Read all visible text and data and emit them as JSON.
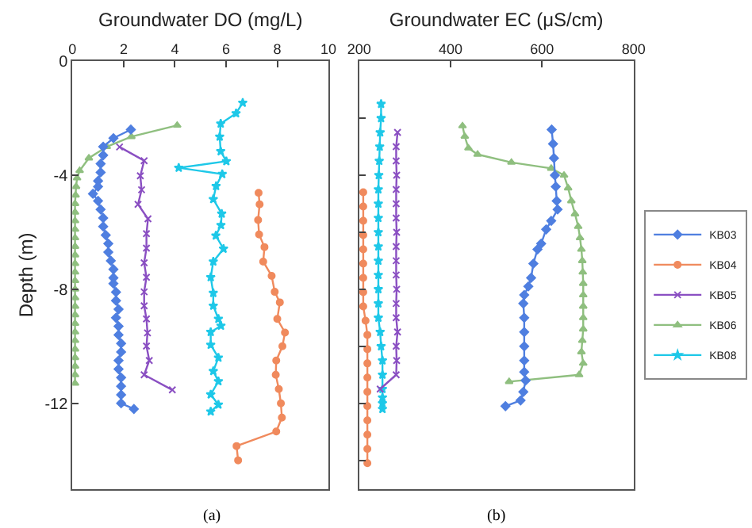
{
  "chart_data": [
    {
      "type": "line",
      "xlabel": "Groundwater DO (mg/L)",
      "ylabel": "Depth (m)",
      "xlim": [
        0,
        10
      ],
      "xticks": [
        0,
        2,
        4,
        6,
        8,
        10
      ],
      "ylim": [
        -15,
        0
      ],
      "yticks": [
        0,
        -4,
        -8,
        -12
      ],
      "legend": "right",
      "annotations": [
        "(a)"
      ],
      "series": [
        {
          "name": "KB03",
          "color": "#4f7fe0",
          "marker": "diamond",
          "x": [
            2.28,
            1.6,
            1.2,
            1.2,
            1.1,
            1.1,
            1.0,
            1.0,
            0.8,
            1.0,
            1.1,
            1.2,
            1.2,
            1.3,
            1.4,
            1.4,
            1.5,
            1.6,
            1.6,
            1.6,
            1.7,
            1.7,
            1.8,
            1.7,
            1.8,
            1.8,
            1.9,
            1.9,
            1.8,
            1.8,
            1.9,
            1.9,
            1.9,
            1.9,
            2.4
          ],
          "values": [
            -2.4,
            -2.7,
            -3.0,
            -3.3,
            -3.6,
            -3.9,
            -4.2,
            -4.4,
            -4.65,
            -4.9,
            -5.2,
            -5.5,
            -5.8,
            -6.1,
            -6.4,
            -6.7,
            -7.0,
            -7.3,
            -7.6,
            -7.8,
            -8.1,
            -8.4,
            -8.7,
            -9.0,
            -9.3,
            -9.6,
            -9.9,
            -10.2,
            -10.5,
            -10.8,
            -11.1,
            -11.4,
            -11.7,
            -12.0,
            -12.2
          ]
        },
        {
          "name": "KB04",
          "color": "#f08a5d",
          "marker": "circle",
          "x": [
            7.27,
            7.31,
            7.25,
            7.29,
            7.5,
            7.45,
            7.78,
            7.9,
            8.1,
            8.0,
            8.3,
            8.2,
            7.96,
            7.94,
            8.06,
            8.14,
            8.18,
            7.96,
            6.41,
            6.47
          ],
          "values": [
            -4.62,
            -5.02,
            -5.57,
            -6.08,
            -6.52,
            -7.03,
            -7.53,
            -8.09,
            -8.46,
            -9.04,
            -9.52,
            -10.0,
            -10.5,
            -11.0,
            -11.5,
            -12.0,
            -12.5,
            -12.99,
            -13.5,
            -14.0
          ]
        },
        {
          "name": "KB05",
          "color": "#8a4fc2",
          "marker": "cross",
          "x": [
            1.84,
            2.8,
            2.65,
            2.7,
            2.56,
            2.95,
            2.89,
            2.89,
            2.8,
            2.89,
            2.8,
            2.8,
            2.89,
            2.93,
            2.89,
            3.0,
            2.8,
            3.9
          ],
          "values": [
            -3.01,
            -3.49,
            -4.02,
            -4.51,
            -5.02,
            -5.53,
            -6.05,
            -6.56,
            -7.07,
            -7.58,
            -8.09,
            -8.58,
            -9.04,
            -9.53,
            -9.99,
            -10.5,
            -11.0,
            -11.53
          ]
        },
        {
          "name": "KB06",
          "color": "#8fbf7f",
          "marker": "triangle",
          "x": [
            4.09,
            2.3,
            1.34,
            0.64,
            0.28,
            0.18,
            0.14,
            0.12,
            0.1,
            0.1,
            0.1,
            0.1,
            0.1,
            0.1,
            0.1,
            0.1,
            0.1,
            0.1,
            0.1,
            0.1,
            0.1,
            0.1,
            0.1,
            0.1,
            0.1,
            0.1,
            0.1,
            0.1,
            0.1,
            0.1
          ],
          "values": [
            -2.25,
            -2.65,
            -3.0,
            -3.4,
            -3.84,
            -4.1,
            -4.4,
            -4.7,
            -5.0,
            -5.3,
            -5.6,
            -5.9,
            -6.2,
            -6.5,
            -6.8,
            -7.1,
            -7.4,
            -7.7,
            -8.0,
            -8.3,
            -8.6,
            -8.9,
            -9.2,
            -9.5,
            -9.8,
            -10.1,
            -10.4,
            -10.7,
            -11.0,
            -11.3
          ]
        },
        {
          "name": "KB08",
          "color": "#1ec8e8",
          "marker": "star",
          "x": [
            6.65,
            6.39,
            5.79,
            5.75,
            5.79,
            6.01,
            4.15,
            5.85,
            5.61,
            5.5,
            5.83,
            5.8,
            5.6,
            5.9,
            5.5,
            5.4,
            5.5,
            5.5,
            5.7,
            5.8,
            5.4,
            5.4,
            5.7,
            5.5,
            5.7,
            5.4,
            5.7,
            5.4
          ],
          "values": [
            -1.46,
            -1.83,
            -2.19,
            -2.65,
            -3.16,
            -3.51,
            -3.74,
            -3.96,
            -4.38,
            -4.84,
            -5.35,
            -5.75,
            -6.12,
            -6.58,
            -7.03,
            -7.58,
            -8.13,
            -8.58,
            -9.04,
            -9.28,
            -9.5,
            -9.95,
            -10.4,
            -10.87,
            -11.23,
            -11.69,
            -12.05,
            -12.29
          ]
        }
      ]
    },
    {
      "type": "line",
      "xlabel": "Groundwater EC (μS/cm)",
      "xlim": [
        200,
        800
      ],
      "xticks": [
        200,
        400,
        600,
        800
      ],
      "ylim": [
        -15,
        0
      ],
      "yticks": [
        {
          "value": -2,
          "label": null
        },
        {
          "value": -4,
          "label": null
        },
        {
          "value": -6,
          "label": null
        },
        {
          "value": -8,
          "label": null
        },
        {
          "value": -10,
          "label": null
        },
        {
          "value": -12,
          "label": null
        },
        {
          "value": -14,
          "label": null
        }
      ],
      "tick_labels": "x",
      "annotations": [
        "(b)"
      ],
      "series": [
        {
          "color": "#4f7fe0",
          "marker": "diamond",
          "x": [
            621,
            624,
            626,
            628,
            630,
            632,
            634,
            620,
            609,
            598,
            590,
            581,
            576,
            570,
            561,
            559,
            561,
            561,
            561,
            561,
            561,
            564,
            559,
            553,
            520
          ],
          "values": [
            -2.4,
            -2.9,
            -3.4,
            -4.0,
            -4.4,
            -4.9,
            -5.2,
            -5.6,
            -5.9,
            -6.4,
            -6.6,
            -7.1,
            -7.6,
            -7.9,
            -8.2,
            -8.5,
            -9.0,
            -9.5,
            -10.0,
            -10.5,
            -10.9,
            -11.2,
            -11.6,
            -11.9,
            -12.1
          ]
        },
        {
          "color": "#f08a5d",
          "marker": "circle",
          "x": [
            209,
            209,
            209,
            209,
            209,
            209,
            209,
            209,
            209,
            214,
            218,
            218,
            218,
            218,
            218,
            218,
            218,
            218,
            218,
            218
          ],
          "values": [
            -4.6,
            -5.1,
            -5.6,
            -6.1,
            -6.6,
            -7.1,
            -7.6,
            -8.1,
            -8.6,
            -9.1,
            -9.6,
            -10.1,
            -10.6,
            -11.1,
            -11.6,
            -12.1,
            -12.6,
            -13.1,
            -13.6,
            -14.1
          ]
        },
        {
          "color": "#8a4fc2",
          "marker": "cross",
          "x": [
            284,
            281,
            281,
            282,
            281,
            281,
            281,
            282,
            281,
            281,
            281,
            282,
            281,
            281,
            284,
            281,
            282,
            281,
            246
          ],
          "values": [
            -2.5,
            -3.0,
            -3.5,
            -4.0,
            -4.5,
            -5.0,
            -5.5,
            -6.0,
            -6.5,
            -7.0,
            -7.5,
            -8.0,
            -8.5,
            -9.0,
            -9.5,
            -10.0,
            -10.5,
            -11.0,
            -11.5
          ]
        },
        {
          "color": "#8fbf7f",
          "marker": "triangle",
          "x": [
            426,
            431,
            439,
            459,
            533,
            620,
            648,
            657,
            664,
            672,
            679,
            683,
            686,
            688,
            689,
            690,
            690,
            690,
            690,
            690,
            688,
            686,
            690,
            681,
            528
          ],
          "values": [
            -2.27,
            -2.64,
            -3.05,
            -3.27,
            -3.55,
            -3.76,
            -4.0,
            -4.45,
            -4.9,
            -5.36,
            -5.8,
            -6.2,
            -6.6,
            -7.0,
            -7.4,
            -7.8,
            -8.2,
            -8.6,
            -9.0,
            -9.4,
            -9.8,
            -10.2,
            -10.6,
            -11.0,
            -11.24
          ]
        },
        {
          "color": "#1ec8e8",
          "marker": "star",
          "x": [
            248,
            248,
            246,
            245,
            244,
            243,
            242,
            242,
            242,
            242,
            242,
            242,
            242,
            242,
            242,
            242,
            246,
            248,
            251,
            251,
            251,
            251,
            251,
            251
          ],
          "values": [
            -1.5,
            -2.0,
            -2.5,
            -3.0,
            -3.5,
            -4.0,
            -4.5,
            -5.0,
            -5.5,
            -6.0,
            -6.5,
            -7.0,
            -7.5,
            -8.0,
            -8.5,
            -9.0,
            -9.5,
            -10.0,
            -10.5,
            -11.0,
            -11.5,
            -11.8,
            -12.0,
            -12.2
          ]
        }
      ]
    }
  ]
}
